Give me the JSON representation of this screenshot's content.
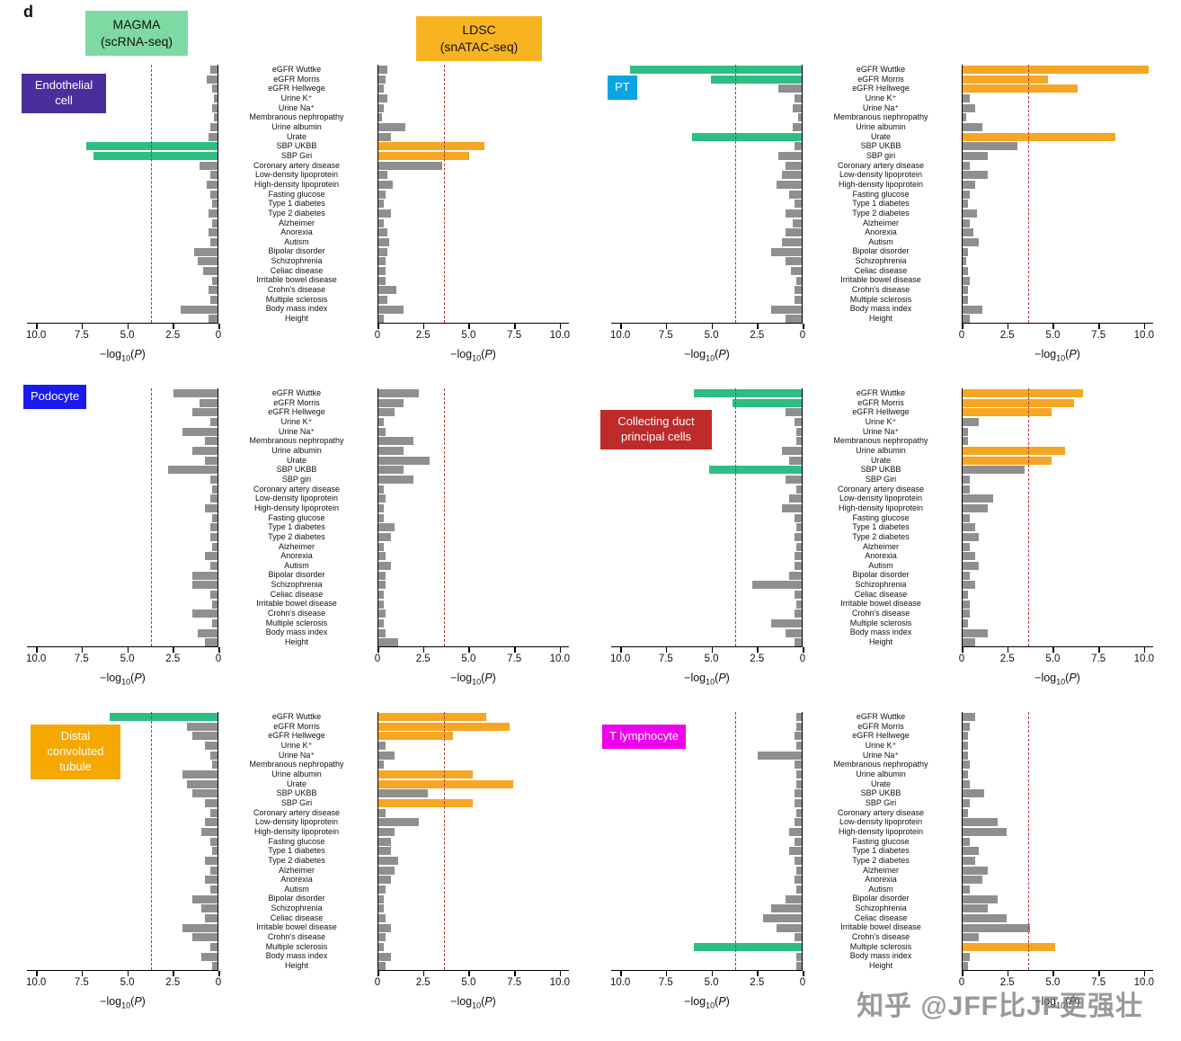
{
  "figure_label": "d",
  "watermark": "知乎 @JFF比JF更强壮",
  "methods": {
    "magma": {
      "line1": "MAGMA",
      "line2": "(scRNA-seq)",
      "box_color": "#7fd9a2",
      "bar_color": "#2dbe83"
    },
    "ldsc": {
      "line1": "LDSC",
      "line2": "(snATAC-seq)",
      "box_color": "#f8b420",
      "bar_color": "#f5a623"
    }
  },
  "colors": {
    "bar_gray": "#8f8f8f",
    "threshold": "#a83535",
    "axis": "#000000"
  },
  "chart_data": {
    "type": "bar",
    "orientation": "horizontal",
    "xlabel": "−log10(P)",
    "xlim": [
      0,
      10.5
    ],
    "threshold": 3.6,
    "ticks": [
      {
        "v": 0,
        "label": "0"
      },
      {
        "v": 2.5,
        "label": "2.5"
      },
      {
        "v": 5,
        "label": "5.0"
      },
      {
        "v": 7.5,
        "label": "7.5"
      },
      {
        "v": 10,
        "label": "10.0"
      }
    ],
    "axis_label": {
      "pre": "−log",
      "sub": "10",
      "open": "(",
      "p": "P",
      "close": ")"
    },
    "panels": [
      {
        "id": "endothelial-cell",
        "cell_type": "Endothelial cell",
        "label_color": "#4b2d9e",
        "traits": [
          "eGFR Wuttke",
          "eGFR Morris",
          "eGFR Hellwege",
          "Urine K⁺",
          "Urine Na⁺",
          "Membranous nephropathy",
          "Urine albumin",
          "Urate",
          "SBP UKBB",
          "SBP Giri",
          "Coronary artery disease",
          "Low-density lipoprotein",
          "High-density lipoprotein",
          "Fasting glucose",
          "Type 1 diabetes",
          "Type 2 diabetes",
          "Alzheimer",
          "Anorexia",
          "Autism",
          "Bipolar disorder",
          "Schizophrenia",
          "Celiac disease",
          "Irritable bowel disease",
          "Crohn's disease",
          "Multiple sclerosis",
          "Body mass index",
          "Height"
        ],
        "magma": {
          "values": [
            0.4,
            0.6,
            0.3,
            0.2,
            0.3,
            0.2,
            0.4,
            0.5,
            7.2,
            6.8,
            1.0,
            0.4,
            0.6,
            0.4,
            0.3,
            0.5,
            0.3,
            0.5,
            0.4,
            1.3,
            1.1,
            0.8,
            0.3,
            0.5,
            0.4,
            2.0,
            0.5
          ],
          "significant": [
            8,
            9
          ]
        },
        "ldsc": {
          "values": [
            0.5,
            0.4,
            0.3,
            0.5,
            0.3,
            0.2,
            1.5,
            0.7,
            5.8,
            5.0,
            3.5,
            0.5,
            0.8,
            0.4,
            0.3,
            0.7,
            0.3,
            0.5,
            0.6,
            0.5,
            0.4,
            0.4,
            0.4,
            1.0,
            0.5,
            1.4,
            0.3
          ],
          "significant": [
            8,
            9
          ]
        }
      },
      {
        "id": "pt",
        "cell_type": "PT",
        "label_color": "#0aa5e2",
        "traits": [
          "eGFR Wuttke",
          "eGFR Morris",
          "eGFR Hellwege",
          "Urine K⁺",
          "Urine Na⁺",
          "Membranous nephropathy",
          "Urine albumin",
          "Urate",
          "SBP UKBB",
          "SBP giri",
          "Coronary artery disease",
          "Low-density lipoprotein",
          "High-density lipoprotein",
          "Fasting glucose",
          "Type 1 diabetes",
          "Type 2 diabetes",
          "Alzheimer",
          "Anorexia",
          "Autism",
          "Bipolar disorder",
          "Schizophrenia",
          "Celiac disease",
          "Irritable bowel disease",
          "Crohn's disease",
          "Multiple sclerosis",
          "Body mass index",
          "Height"
        ],
        "magma": {
          "values": [
            9.4,
            5.0,
            1.3,
            0.4,
            0.5,
            0.2,
            0.5,
            6.0,
            0.4,
            1.3,
            0.9,
            1.1,
            1.4,
            0.7,
            0.4,
            0.9,
            0.5,
            0.9,
            1.1,
            1.7,
            0.9,
            0.6,
            0.3,
            0.4,
            0.4,
            1.7,
            0.9
          ],
          "significant": [
            0,
            1,
            7
          ]
        },
        "ldsc": {
          "values": [
            10.2,
            4.7,
            6.3,
            0.4,
            0.7,
            0.2,
            1.1,
            8.4,
            3.0,
            1.4,
            0.4,
            1.4,
            0.7,
            0.4,
            0.3,
            0.8,
            0.4,
            0.6,
            0.9,
            0.3,
            0.2,
            0.3,
            0.4,
            0.3,
            0.3,
            1.1,
            0.4
          ],
          "significant": [
            0,
            1,
            2,
            7
          ]
        }
      },
      {
        "id": "podocyte",
        "cell_type": "Podocyte",
        "label_color": "#1a1aee",
        "traits": [
          "eGFR Wuttke",
          "eGFR Morris",
          "eGFR Hellwege",
          "Urine K⁺",
          "Urine Na⁺",
          "Membranous nephropathy",
          "Urine albumin",
          "Urate",
          "SBP UKBB",
          "SBP giri",
          "Coronary artery disease",
          "Low-density lipoprotein",
          "High-density lipoprotein",
          "Fasting glucose",
          "Type 1 diabetes",
          "Type 2 diabetes",
          "Alzheimer",
          "Anorexia",
          "Autism",
          "Bipolar disorder",
          "Schizophrenia",
          "Celiac disease",
          "Irritable bowel disease",
          "Crohn's disease",
          "Multiple sclerosis",
          "Body mass index",
          "Height"
        ],
        "magma": {
          "values": [
            2.4,
            1.0,
            1.4,
            0.4,
            1.9,
            0.7,
            1.4,
            0.7,
            2.7,
            0.4,
            0.3,
            0.4,
            0.7,
            0.3,
            0.4,
            0.4,
            0.3,
            0.7,
            0.4,
            1.4,
            1.4,
            0.4,
            0.3,
            1.4,
            0.3,
            1.1,
            0.7
          ],
          "significant": []
        },
        "ldsc": {
          "values": [
            2.2,
            1.4,
            0.9,
            0.3,
            0.4,
            1.9,
            1.4,
            2.8,
            1.4,
            1.9,
            0.3,
            0.4,
            0.3,
            0.3,
            0.9,
            0.7,
            0.3,
            0.4,
            0.7,
            0.4,
            0.4,
            0.3,
            0.3,
            0.4,
            0.3,
            0.4,
            1.1
          ],
          "significant": []
        }
      },
      {
        "id": "collecting-duct-principal-cells",
        "cell_type": "Collecting duct principal cells",
        "label_color": "#bf2a2a",
        "traits": [
          "eGFR Wuttke",
          "eGFR Morris",
          "eGFR Hellwege",
          "Urine K⁺",
          "Urine Na⁺",
          "Membranous nephropathy",
          "Urine albumin",
          "Urate",
          "SBP UKBB",
          "SBP Giri",
          "Coronary artery disease",
          "Low-density lipoprotein",
          "High-density lipoprotein",
          "Fasting glucose",
          "Type 1 diabetes",
          "Type 2 diabetes",
          "Alzheimer",
          "Anorexia",
          "Autism",
          "Bipolar disorder",
          "Schizophrenia",
          "Celiac disease",
          "Irritable bowel disease",
          "Crohn's disease",
          "Multiple sclerosis",
          "Body mass index",
          "Height"
        ],
        "magma": {
          "values": [
            5.9,
            3.8,
            0.9,
            0.4,
            0.3,
            0.3,
            1.1,
            0.7,
            5.1,
            0.9,
            0.3,
            0.7,
            1.1,
            0.4,
            0.3,
            0.4,
            0.3,
            0.4,
            0.4,
            0.7,
            2.7,
            0.4,
            0.3,
            0.4,
            1.7,
            0.9,
            0.4
          ],
          "significant": [
            0,
            1,
            8
          ]
        },
        "ldsc": {
          "values": [
            6.6,
            6.1,
            4.9,
            0.9,
            0.3,
            0.3,
            5.6,
            4.9,
            3.4,
            0.4,
            0.4,
            1.7,
            1.4,
            0.4,
            0.7,
            0.9,
            0.4,
            0.7,
            0.9,
            0.4,
            0.7,
            0.3,
            0.4,
            0.4,
            0.3,
            1.4,
            0.7
          ],
          "significant": [
            0,
            1,
            2,
            6,
            7
          ]
        }
      },
      {
        "id": "distal-convoluted-tubule",
        "cell_type": "Distal convoluted tubule",
        "label_color": "#f5a800",
        "traits": [
          "eGFR Wuttke",
          "eGFR Morris",
          "eGFR Hellwege",
          "Urine K⁺",
          "Urine Na⁺",
          "Membranous nephropathy",
          "Urine albumin",
          "Urate",
          "SBP UKBB",
          "SBP Giri",
          "Coronary artery disease",
          "Low-density lipoprotein",
          "High-density lipoprotein",
          "Fasting glucose",
          "Type 1 diabetes",
          "Type 2 diabetes",
          "Alzheimer",
          "Anorexia",
          "Autism",
          "Bipolar disorder",
          "Schizophrenia",
          "Celiac disease",
          "Irritable bowel disease",
          "Crohn's disease",
          "Multiple sclerosis",
          "Body mass index",
          "Height"
        ],
        "magma": {
          "values": [
            5.9,
            1.7,
            1.4,
            0.7,
            0.4,
            0.3,
            1.9,
            1.7,
            1.4,
            0.7,
            0.4,
            0.7,
            0.9,
            0.4,
            0.3,
            0.7,
            0.4,
            0.7,
            0.4,
            1.4,
            0.9,
            0.7,
            1.9,
            1.4,
            0.4,
            0.9,
            0.3
          ],
          "significant": [
            0
          ]
        },
        "ldsc": {
          "values": [
            5.9,
            7.2,
            4.1,
            0.4,
            0.9,
            0.3,
            5.2,
            7.4,
            2.7,
            5.2,
            0.4,
            2.2,
            0.9,
            0.7,
            0.7,
            1.1,
            0.9,
            0.7,
            0.4,
            0.3,
            0.3,
            0.4,
            0.7,
            0.4,
            0.3,
            0.7,
            0.4
          ],
          "significant": [
            0,
            1,
            2,
            6,
            7,
            9
          ]
        }
      },
      {
        "id": "t-lymphocyte",
        "cell_type": "T lymphocyte",
        "label_color": "#ee00ee",
        "traits": [
          "eGFR Wuttke",
          "eGFR Morris",
          "eGFR Hellwege",
          "Urine K⁺",
          "Urine Na⁺",
          "Membranous nephropathy",
          "Urine albumin",
          "Urate",
          "SBP UKBB",
          "SBP Giri",
          "Coronary artery disease",
          "Low-density lipoprotein",
          "High-density lipoprotein",
          "Fasting glucose",
          "Type 1 diabetes",
          "Type 2 diabetes",
          "Alzheimer",
          "Anorexia",
          "Autism",
          "Bipolar disorder",
          "Schizophrenia",
          "Celiac disease",
          "Irritable bowel disease",
          "Crohn's disease",
          "Multiple sclerosis",
          "Body mass index",
          "Height"
        ],
        "magma": {
          "values": [
            0.3,
            0.3,
            0.4,
            0.3,
            2.4,
            0.4,
            0.3,
            0.3,
            0.4,
            0.4,
            0.3,
            0.4,
            0.7,
            0.4,
            0.7,
            0.4,
            0.3,
            0.4,
            0.3,
            0.9,
            1.7,
            2.1,
            1.4,
            0.4,
            5.9,
            0.3,
            0.3
          ],
          "significant": [
            24
          ]
        },
        "ldsc": {
          "values": [
            0.7,
            0.4,
            0.3,
            0.3,
            0.3,
            0.4,
            0.3,
            0.4,
            1.2,
            0.4,
            0.3,
            1.9,
            2.4,
            0.4,
            0.9,
            0.7,
            1.4,
            1.1,
            0.4,
            1.9,
            1.4,
            2.4,
            3.7,
            0.9,
            5.1,
            0.4,
            0.3
          ],
          "significant": [
            24
          ]
        }
      }
    ]
  }
}
